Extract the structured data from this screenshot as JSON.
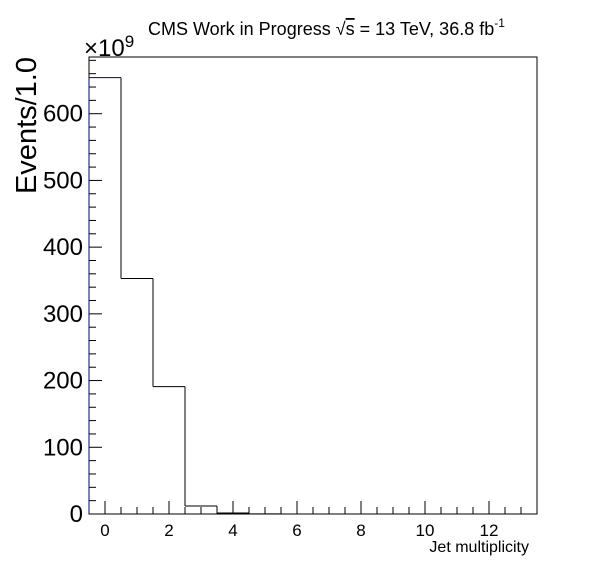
{
  "chart_data": {
    "type": "bar",
    "title": {
      "prefix": "CMS Work in Progress ",
      "sqrt_symbol": "√",
      "sqrt_arg": "s",
      "suffix": " = 13 TeV, 36.8 fb",
      "superscript": "-1"
    },
    "xlabel": "Jet multiplicity",
    "ylabel": "Events/1.0",
    "y_multiplier": "×10",
    "y_multiplier_exponent": "9",
    "xlim": [
      -0.5,
      13.5
    ],
    "ylim": [
      0,
      685
    ],
    "x_ticks": [
      0,
      2,
      4,
      6,
      8,
      10,
      12
    ],
    "x_tick_labels": [
      "0",
      "2",
      "4",
      "6",
      "8",
      "10",
      "12"
    ],
    "y_ticks": [
      0,
      100,
      200,
      300,
      400,
      500,
      600
    ],
    "y_tick_labels": [
      "0",
      "100",
      "200",
      "300",
      "400",
      "500",
      "600"
    ],
    "bin_width": 1.0,
    "bin_centers": [
      0,
      1,
      2,
      3,
      4,
      5,
      6,
      7,
      8,
      9,
      10,
      11,
      12,
      13
    ],
    "values": [
      654,
      353,
      191,
      12,
      1.5,
      0.1,
      0,
      0,
      0,
      0,
      0,
      0,
      0,
      0
    ],
    "line_color_first_bin": "#000080",
    "line_color": "#000000",
    "grid": false
  }
}
